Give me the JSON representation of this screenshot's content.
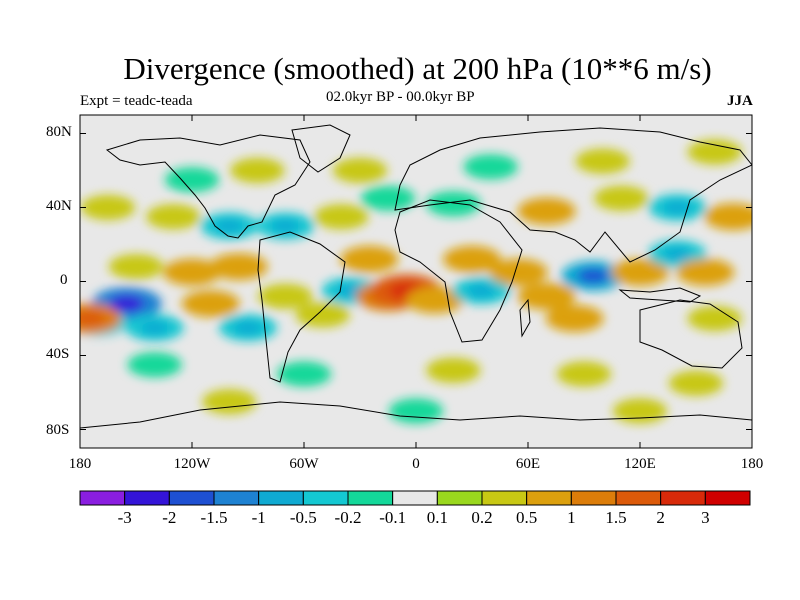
{
  "title": "Divergence (smoothed) at 200 hPa (10**6 m/s)",
  "subtitle_left": "Expt = teadc-teada",
  "subtitle_center": "02.0kyr BP - 00.0kyr BP",
  "subtitle_right": "JJA",
  "lat_ticks": [
    "80N",
    "40N",
    "0",
    "40S",
    "80S"
  ],
  "lon_ticks": [
    "180",
    "120W",
    "60W",
    "0",
    "60E",
    "120E",
    "180"
  ],
  "colorbar": {
    "labels": [
      "-3",
      "-2",
      "-1.5",
      "-1",
      "-0.5",
      "-0.2",
      "-0.1",
      "0.1",
      "0.2",
      "0.5",
      "1",
      "1.5",
      "2",
      "3"
    ],
    "colors": [
      "#8a1ee0",
      "#3414d8",
      "#1e50d2",
      "#1e82d2",
      "#10aad2",
      "#14c8d2",
      "#14d89a",
      "#e8e8e8",
      "#9ad81e",
      "#c8c814",
      "#dca00e",
      "#dc7d0a",
      "#dc5a0a",
      "#d82a0a",
      "#d00000"
    ]
  },
  "anomaly_fields": [
    {
      "lon": -155,
      "lat": -12,
      "value": -1.5
    },
    {
      "lon": -140,
      "lat": -25,
      "value": -0.5
    },
    {
      "lon": -170,
      "lat": -22,
      "value": -0.5
    },
    {
      "lon": -120,
      "lat": 5,
      "value": 0.5
    },
    {
      "lon": -150,
      "lat": 8,
      "value": 0.2
    },
    {
      "lon": -95,
      "lat": 8,
      "value": 0.5
    },
    {
      "lon": -110,
      "lat": -12,
      "value": 0.5
    },
    {
      "lon": -90,
      "lat": -25,
      "value": -0.5
    },
    {
      "lon": -70,
      "lat": -8,
      "value": 0.2
    },
    {
      "lon": -50,
      "lat": -18,
      "value": 0.2
    },
    {
      "lon": -35,
      "lat": -5,
      "value": -0.5
    },
    {
      "lon": -25,
      "lat": 12,
      "value": 0.5
    },
    {
      "lon": -15,
      "lat": -8,
      "value": 1.0
    },
    {
      "lon": -5,
      "lat": -5,
      "value": 1.5
    },
    {
      "lon": 10,
      "lat": -10,
      "value": 0.5
    },
    {
      "lon": 35,
      "lat": -5,
      "value": -0.5
    },
    {
      "lon": 30,
      "lat": 12,
      "value": 0.5
    },
    {
      "lon": 55,
      "lat": 5,
      "value": 0.5
    },
    {
      "lon": 70,
      "lat": -8,
      "value": 0.5
    },
    {
      "lon": 95,
      "lat": 3,
      "value": -1.0
    },
    {
      "lon": 85,
      "lat": -20,
      "value": 0.5
    },
    {
      "lon": 120,
      "lat": 5,
      "value": 0.5
    },
    {
      "lon": 140,
      "lat": 15,
      "value": -0.5
    },
    {
      "lon": 155,
      "lat": 5,
      "value": 0.5
    },
    {
      "lon": 160,
      "lat": -20,
      "value": 0.2
    },
    {
      "lon": -175,
      "lat": -20,
      "value": 1.0
    },
    {
      "lon": -165,
      "lat": 40,
      "value": 0.2
    },
    {
      "lon": -130,
      "lat": 35,
      "value": 0.2
    },
    {
      "lon": -100,
      "lat": 30,
      "value": -0.5
    },
    {
      "lon": -70,
      "lat": 30,
      "value": -0.5
    },
    {
      "lon": -40,
      "lat": 35,
      "value": 0.2
    },
    {
      "lon": -15,
      "lat": 45,
      "value": -0.2
    },
    {
      "lon": 20,
      "lat": 42,
      "value": -0.2
    },
    {
      "lon": 70,
      "lat": 38,
      "value": 0.5
    },
    {
      "lon": 110,
      "lat": 45,
      "value": 0.2
    },
    {
      "lon": 140,
      "lat": 40,
      "value": -0.5
    },
    {
      "lon": 170,
      "lat": 35,
      "value": 0.5
    },
    {
      "lon": -120,
      "lat": 55,
      "value": -0.2
    },
    {
      "lon": -85,
      "lat": 60,
      "value": 0.2
    },
    {
      "lon": -30,
      "lat": 60,
      "value": 0.2
    },
    {
      "lon": 40,
      "lat": 62,
      "value": -0.2
    },
    {
      "lon": 100,
      "lat": 65,
      "value": 0.2
    },
    {
      "lon": 160,
      "lat": 70,
      "value": 0.2
    },
    {
      "lon": -140,
      "lat": -45,
      "value": -0.2
    },
    {
      "lon": -60,
      "lat": -50,
      "value": -0.2
    },
    {
      "lon": 20,
      "lat": -48,
      "value": 0.2
    },
    {
      "lon": 90,
      "lat": -50,
      "value": 0.2
    },
    {
      "lon": 150,
      "lat": -55,
      "value": 0.2
    },
    {
      "lon": -100,
      "lat": -65,
      "value": 0.2
    },
    {
      "lon": 0,
      "lat": -70,
      "value": -0.2
    },
    {
      "lon": 120,
      "lat": -70,
      "value": 0.2
    }
  ]
}
